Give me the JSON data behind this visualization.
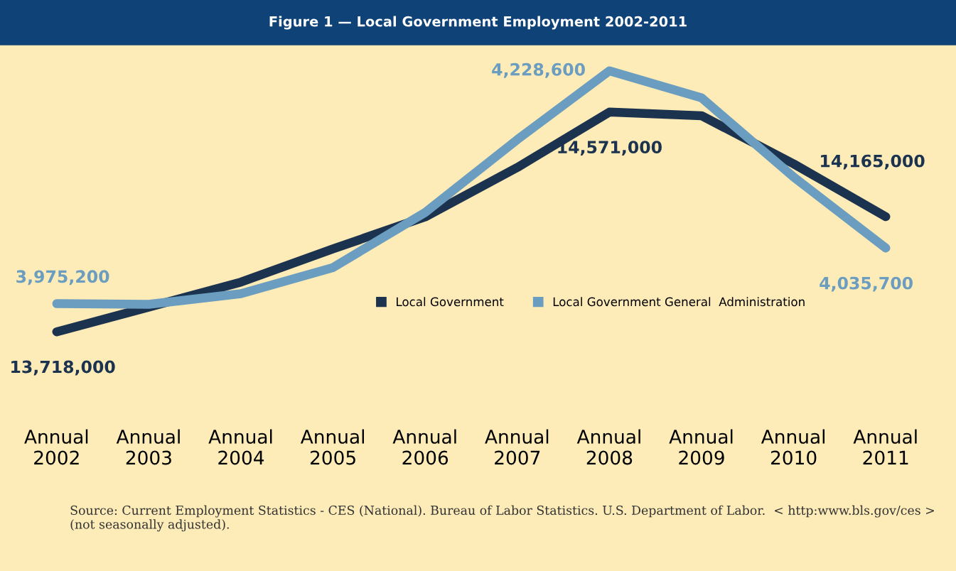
{
  "chart_data": {
    "type": "line",
    "title": "Figure 1 — Local Government Employment 2002-2011",
    "categories": [
      "Annual\n2002",
      "Annual\n2003",
      "Annual\n2004",
      "Annual\n2005",
      "Annual\n2006",
      "Annual\n2007",
      "Annual\n2008",
      "Annual\n2009",
      "Annual\n2010",
      "Annual\n2011"
    ],
    "series": [
      {
        "name": "Local Government",
        "color": "#1c334f",
        "values": [
          13718000,
          13814000,
          13911000,
          14040000,
          14164000,
          14356000,
          14571000,
          14557000,
          14370000,
          14165000
        ],
        "value_labels": [
          "13,718,000",
          null,
          null,
          null,
          null,
          null,
          "14,571,000",
          null,
          null,
          "14,165,000"
        ]
      },
      {
        "name": "Local Government General  Administration",
        "color": "#6a9dbf",
        "axis": "y2",
        "values": [
          3975200,
          3974400,
          3986000,
          4014500,
          4074500,
          4153800,
          4228600,
          4199300,
          4113000,
          4035700
        ],
        "value_labels": [
          "3,975,200",
          null,
          null,
          null,
          null,
          null,
          "4,228,600",
          null,
          null,
          "4,035,700"
        ]
      }
    ],
    "tick_labels": "x",
    "grid": false,
    "legend": "bottom",
    "line_style": "solid",
    "annotations": [
      "Source: Current Employment Statistics - CES (National). Bureau of Labor Statistics. U.S. Department of Labor.  < http:www.bls.gov/ces > (not seasonally adjusted)."
    ]
  }
}
